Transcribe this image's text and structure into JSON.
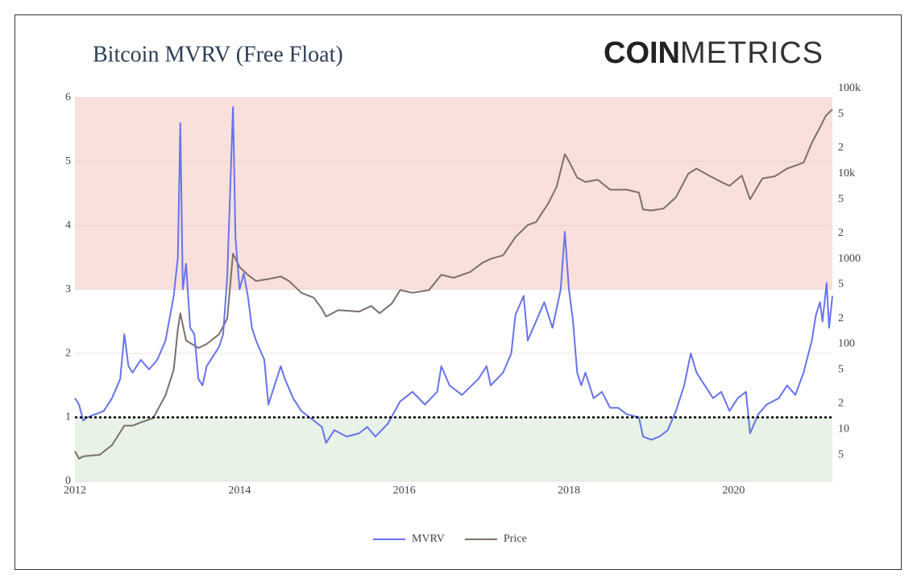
{
  "chart_data": {
    "type": "line",
    "title": "Bitcoin MVRV (Free Float)",
    "brand": [
      "COIN",
      "METRICS"
    ],
    "xscale": "linear",
    "xlim": [
      2012,
      2021.2
    ],
    "xticks": [
      2012,
      2014,
      2016,
      2018,
      2020
    ],
    "ylim": [
      0,
      6.14
    ],
    "yticks": [
      0,
      1,
      2,
      3,
      4,
      5,
      6
    ],
    "y2scale": "log",
    "y2lim": [
      2.44,
      100000
    ],
    "y2ticks": [
      5,
      10,
      {
        "value": 20,
        "label": "2"
      },
      {
        "value": 50,
        "label": "5"
      },
      100,
      {
        "value": 200,
        "label": "2"
      },
      {
        "value": 500,
        "label": "5"
      },
      1000,
      {
        "value": 2000,
        "label": "2"
      },
      {
        "value": 5000,
        "label": "5"
      },
      {
        "value": 10000,
        "label": "10k"
      },
      {
        "value": 20000,
        "label": "2"
      },
      {
        "value": 50000,
        "label": "5"
      },
      {
        "value": 100000,
        "label": "100k"
      }
    ],
    "grid": true,
    "bands": [
      {
        "from": 3,
        "to": 6,
        "color": "#f9e0dc"
      },
      {
        "from": 0,
        "to": 1,
        "color": "#e8f2e6"
      }
    ],
    "hline": {
      "value": 1,
      "color": "#000000"
    },
    "legend": "bottom",
    "series": [
      {
        "name": "MVRV",
        "color": "#6674ec",
        "axis": "y",
        "x": [
          2012.0,
          2012.05,
          2012.1,
          2012.15,
          2012.25,
          2012.35,
          2012.45,
          2012.55,
          2012.6,
          2012.65,
          2012.7,
          2012.8,
          2012.9,
          2013.0,
          2013.1,
          2013.2,
          2013.25,
          2013.28,
          2013.31,
          2013.35,
          2013.4,
          2013.45,
          2013.5,
          2013.55,
          2013.6,
          2013.7,
          2013.75,
          2013.8,
          2013.85,
          2013.9,
          2013.92,
          2013.95,
          2014.0,
          2014.05,
          2014.1,
          2014.15,
          2014.2,
          2014.3,
          2014.35,
          2014.4,
          2014.5,
          2014.55,
          2014.65,
          2014.75,
          2014.85,
          2015.0,
          2015.05,
          2015.15,
          2015.3,
          2015.45,
          2015.55,
          2015.65,
          2015.8,
          2015.95,
          2016.1,
          2016.25,
          2016.4,
          2016.45,
          2016.55,
          2016.7,
          2016.9,
          2017.0,
          2017.05,
          2017.2,
          2017.3,
          2017.35,
          2017.45,
          2017.5,
          2017.6,
          2017.7,
          2017.8,
          2017.9,
          2017.95,
          2018.0,
          2018.05,
          2018.1,
          2018.15,
          2018.2,
          2018.3,
          2018.4,
          2018.5,
          2018.6,
          2018.7,
          2018.85,
          2018.9,
          2019.0,
          2019.1,
          2019.2,
          2019.3,
          2019.4,
          2019.48,
          2019.55,
          2019.65,
          2019.75,
          2019.85,
          2019.95,
          2020.05,
          2020.15,
          2020.2,
          2020.3,
          2020.4,
          2020.55,
          2020.65,
          2020.75,
          2020.85,
          2020.95,
          2021.0,
          2021.05,
          2021.08,
          2021.13,
          2021.16,
          2021.2
        ],
        "values": [
          1.3,
          1.2,
          0.95,
          1.0,
          1.05,
          1.1,
          1.3,
          1.6,
          2.3,
          1.8,
          1.7,
          1.9,
          1.75,
          1.9,
          2.2,
          2.9,
          3.5,
          5.6,
          3.0,
          3.4,
          2.4,
          2.3,
          1.6,
          1.5,
          1.8,
          2.0,
          2.1,
          2.3,
          3.2,
          5.1,
          5.85,
          3.8,
          3.0,
          3.25,
          2.9,
          2.4,
          2.2,
          1.9,
          1.2,
          1.4,
          1.8,
          1.6,
          1.3,
          1.1,
          1.0,
          0.85,
          0.6,
          0.8,
          0.7,
          0.75,
          0.85,
          0.7,
          0.9,
          1.25,
          1.4,
          1.2,
          1.4,
          1.8,
          1.5,
          1.35,
          1.6,
          1.8,
          1.5,
          1.7,
          2.0,
          2.6,
          2.9,
          2.2,
          2.5,
          2.8,
          2.4,
          3.0,
          3.9,
          3.0,
          2.5,
          1.7,
          1.5,
          1.7,
          1.3,
          1.4,
          1.15,
          1.15,
          1.05,
          1.0,
          0.7,
          0.65,
          0.7,
          0.8,
          1.1,
          1.5,
          2.0,
          1.7,
          1.5,
          1.3,
          1.4,
          1.1,
          1.3,
          1.4,
          0.75,
          1.05,
          1.2,
          1.3,
          1.5,
          1.35,
          1.7,
          2.2,
          2.6,
          2.8,
          2.5,
          3.1,
          2.4,
          2.9
        ]
      },
      {
        "name": "Price",
        "color": "#7b706b",
        "axis": "y2",
        "x": [
          2012.0,
          2012.05,
          2012.1,
          2012.3,
          2012.45,
          2012.6,
          2012.7,
          2012.8,
          2012.95,
          2013.1,
          2013.2,
          2013.25,
          2013.28,
          2013.35,
          2013.5,
          2013.6,
          2013.75,
          2013.85,
          2013.9,
          2013.92,
          2014.0,
          2014.1,
          2014.2,
          2014.35,
          2014.5,
          2014.6,
          2014.75,
          2014.9,
          2015.0,
          2015.05,
          2015.2,
          2015.45,
          2015.6,
          2015.7,
          2015.85,
          2015.95,
          2016.1,
          2016.3,
          2016.45,
          2016.6,
          2016.8,
          2016.95,
          2017.05,
          2017.2,
          2017.35,
          2017.5,
          2017.6,
          2017.75,
          2017.85,
          2017.95,
          2018.0,
          2018.1,
          2018.2,
          2018.35,
          2018.5,
          2018.7,
          2018.85,
          2018.9,
          2019.0,
          2019.15,
          2019.3,
          2019.45,
          2019.55,
          2019.7,
          2019.85,
          2019.95,
          2020.1,
          2020.2,
          2020.35,
          2020.5,
          2020.65,
          2020.85,
          2020.95,
          2021.05,
          2021.12,
          2021.2
        ],
        "values": [
          5.5,
          4.5,
          4.8,
          5,
          6.5,
          11,
          11,
          12,
          13.5,
          25,
          50,
          150,
          230,
          110,
          90,
          100,
          130,
          200,
          700,
          1150,
          800,
          650,
          550,
          580,
          620,
          550,
          400,
          350,
          260,
          210,
          250,
          240,
          280,
          230,
          300,
          430,
          400,
          430,
          650,
          600,
          700,
          900,
          1000,
          1100,
          1800,
          2500,
          2700,
          4500,
          7000,
          17000,
          14000,
          9000,
          8000,
          8500,
          6500,
          6500,
          6000,
          3800,
          3700,
          3900,
          5300,
          10000,
          11500,
          9500,
          8000,
          7200,
          9500,
          5000,
          8800,
          9300,
          11500,
          13500,
          23000,
          35000,
          48000,
          57000
        ]
      }
    ]
  }
}
